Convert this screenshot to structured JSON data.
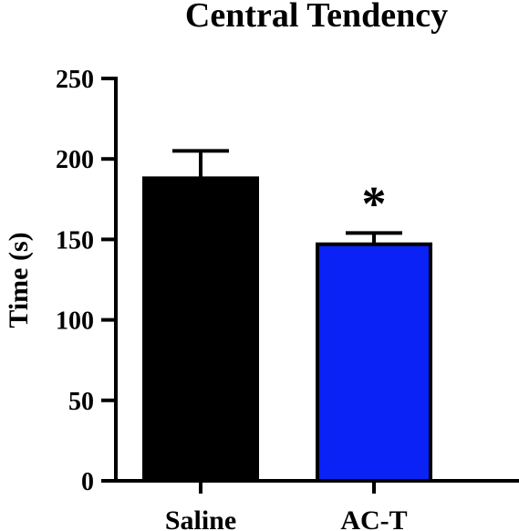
{
  "chart_data": {
    "type": "bar",
    "title": "Central Tendency",
    "xlabel": "",
    "ylabel": "Time (s)",
    "ylim": [
      0,
      250
    ],
    "yticks": [
      0,
      50,
      100,
      150,
      200,
      250
    ],
    "yticks_labels": [
      "0",
      "50",
      "100",
      "150",
      "200",
      "250"
    ],
    "categories": [
      "Saline",
      "AC-T"
    ],
    "values": [
      188,
      147
    ],
    "error": [
      17,
      7
    ],
    "colors": [
      "#000000",
      "#0a22f5"
    ],
    "annotations": [
      {
        "category": "AC-T",
        "text": "*"
      }
    ],
    "grid": false,
    "legend": "none"
  }
}
